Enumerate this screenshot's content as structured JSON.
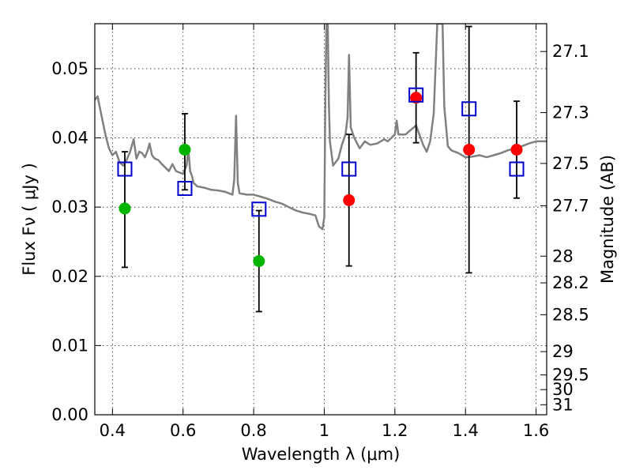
{
  "chart_data": {
    "type": "scatter",
    "title": "",
    "xlabel": "Wavelength  λ (μm)",
    "ylabel": "Flux  Fν  ( μJy )",
    "y2label": "Magnitude (AB)",
    "xlim": [
      0.35,
      1.63
    ],
    "ylim": [
      0.0,
      0.0565
    ],
    "grid": true,
    "x_ticks": [
      0.4,
      0.6,
      0.8,
      1.0,
      1.2,
      1.4,
      1.6
    ],
    "x_tick_labels": [
      "0.4",
      "0.6",
      "0.8",
      "1",
      "1.2",
      "1.4",
      "1.6"
    ],
    "y_ticks": [
      0.0,
      0.01,
      0.02,
      0.03,
      0.04,
      0.05
    ],
    "y_tick_labels": [
      "0.00",
      "0.01",
      "0.02",
      "0.03",
      "0.04",
      "0.05"
    ],
    "y2_ticks": [
      27.1,
      27.3,
      27.5,
      27.7,
      28,
      28.2,
      28.5,
      29,
      29.5,
      30,
      31
    ],
    "y2_tick_labels": [
      "27.1",
      "27.3",
      "27.5",
      "27.7",
      "28",
      "28.2",
      "28.5",
      "29",
      "29.5",
      "30",
      "31"
    ],
    "series": [
      {
        "kind": "spectrum",
        "color": "#808080",
        "points": [
          [
            0.35,
            0.0455
          ],
          [
            0.358,
            0.046
          ],
          [
            0.365,
            0.0442
          ],
          [
            0.372,
            0.0425
          ],
          [
            0.38,
            0.0405
          ],
          [
            0.39,
            0.0385
          ],
          [
            0.4,
            0.0375
          ],
          [
            0.41,
            0.038
          ],
          [
            0.42,
            0.0365
          ],
          [
            0.43,
            0.036
          ],
          [
            0.44,
            0.0368
          ],
          [
            0.45,
            0.038
          ],
          [
            0.46,
            0.0398
          ],
          [
            0.468,
            0.037
          ],
          [
            0.476,
            0.038
          ],
          [
            0.484,
            0.0378
          ],
          [
            0.492,
            0.0372
          ],
          [
            0.5,
            0.0382
          ],
          [
            0.505,
            0.0392
          ],
          [
            0.512,
            0.0375
          ],
          [
            0.52,
            0.037
          ],
          [
            0.53,
            0.0368
          ],
          [
            0.54,
            0.0362
          ],
          [
            0.55,
            0.0357
          ],
          [
            0.56,
            0.0352
          ],
          [
            0.57,
            0.0362
          ],
          [
            0.58,
            0.0352
          ],
          [
            0.59,
            0.035
          ],
          [
            0.6,
            0.0348
          ],
          [
            0.61,
            0.036
          ],
          [
            0.615,
            0.0385
          ],
          [
            0.62,
            0.0352
          ],
          [
            0.625,
            0.0345
          ],
          [
            0.63,
            0.0335
          ],
          [
            0.64,
            0.033
          ],
          [
            0.66,
            0.0328
          ],
          [
            0.68,
            0.0325
          ],
          [
            0.7,
            0.0324
          ],
          [
            0.72,
            0.0322
          ],
          [
            0.74,
            0.0318
          ],
          [
            0.745,
            0.034
          ],
          [
            0.75,
            0.0432
          ],
          [
            0.755,
            0.0335
          ],
          [
            0.76,
            0.032
          ],
          [
            0.78,
            0.0318
          ],
          [
            0.8,
            0.0318
          ],
          [
            0.82,
            0.0315
          ],
          [
            0.84,
            0.0312
          ],
          [
            0.86,
            0.0308
          ],
          [
            0.88,
            0.0305
          ],
          [
            0.9,
            0.03
          ],
          [
            0.92,
            0.0295
          ],
          [
            0.94,
            0.0292
          ],
          [
            0.96,
            0.029
          ],
          [
            0.975,
            0.0288
          ],
          [
            0.985,
            0.0272
          ],
          [
            0.995,
            0.0268
          ],
          [
            1.0,
            0.0285
          ],
          [
            1.003,
            0.045
          ],
          [
            1.006,
            0.0565
          ],
          [
            1.01,
            0.0565
          ],
          [
            1.013,
            0.045
          ],
          [
            1.016,
            0.0395
          ],
          [
            1.025,
            0.036
          ],
          [
            1.04,
            0.037
          ],
          [
            1.05,
            0.039
          ],
          [
            1.06,
            0.0405
          ],
          [
            1.066,
            0.043
          ],
          [
            1.07,
            0.052
          ],
          [
            1.075,
            0.0415
          ],
          [
            1.085,
            0.04
          ],
          [
            1.1,
            0.0385
          ],
          [
            1.115,
            0.0395
          ],
          [
            1.13,
            0.039
          ],
          [
            1.15,
            0.0392
          ],
          [
            1.17,
            0.0398
          ],
          [
            1.18,
            0.0395
          ],
          [
            1.2,
            0.0405
          ],
          [
            1.205,
            0.0425
          ],
          [
            1.21,
            0.0405
          ],
          [
            1.23,
            0.0405
          ],
          [
            1.26,
            0.0418
          ],
          [
            1.28,
            0.039
          ],
          [
            1.29,
            0.038
          ],
          [
            1.3,
            0.0395
          ],
          [
            1.31,
            0.0435
          ],
          [
            1.32,
            0.0565
          ],
          [
            1.335,
            0.0565
          ],
          [
            1.34,
            0.0445
          ],
          [
            1.35,
            0.0388
          ],
          [
            1.36,
            0.0382
          ],
          [
            1.38,
            0.0378
          ],
          [
            1.4,
            0.0372
          ],
          [
            1.42,
            0.0373
          ],
          [
            1.44,
            0.0375
          ],
          [
            1.46,
            0.0372
          ],
          [
            1.48,
            0.0375
          ],
          [
            1.5,
            0.0378
          ],
          [
            1.52,
            0.0382
          ],
          [
            1.54,
            0.0385
          ],
          [
            1.56,
            0.0388
          ],
          [
            1.58,
            0.0392
          ],
          [
            1.6,
            0.0395
          ],
          [
            1.63,
            0.0395
          ]
        ]
      },
      {
        "kind": "model",
        "marker": "open-square",
        "color": "#0000cc",
        "x": [
          0.435,
          0.605,
          0.815,
          1.07,
          1.26,
          1.41,
          1.545
        ],
        "y": [
          0.0355,
          0.0327,
          0.0297,
          0.0355,
          0.0462,
          0.0442,
          0.0355
        ]
      },
      {
        "kind": "observed-green",
        "marker": "filled-circle",
        "color": "#00b400",
        "x": [
          0.435,
          0.605,
          0.815
        ],
        "y": [
          0.0298,
          0.0383,
          0.0222
        ],
        "yerr_low": [
          0.0085,
          0.0058,
          0.0073
        ],
        "yerr_high": [
          0.0082,
          0.0052,
          0.0073
        ]
      },
      {
        "kind": "observed-red",
        "marker": "filled-circle",
        "color": "#ff0000",
        "x": [
          1.07,
          1.26,
          1.41,
          1.545
        ],
        "y": [
          0.031,
          0.0458,
          0.0383,
          0.0383
        ],
        "yerr_low": [
          0.0095,
          0.0065,
          0.0178,
          0.007
        ],
        "yerr_high": [
          0.0095,
          0.0065,
          0.0178,
          0.007
        ]
      }
    ]
  }
}
